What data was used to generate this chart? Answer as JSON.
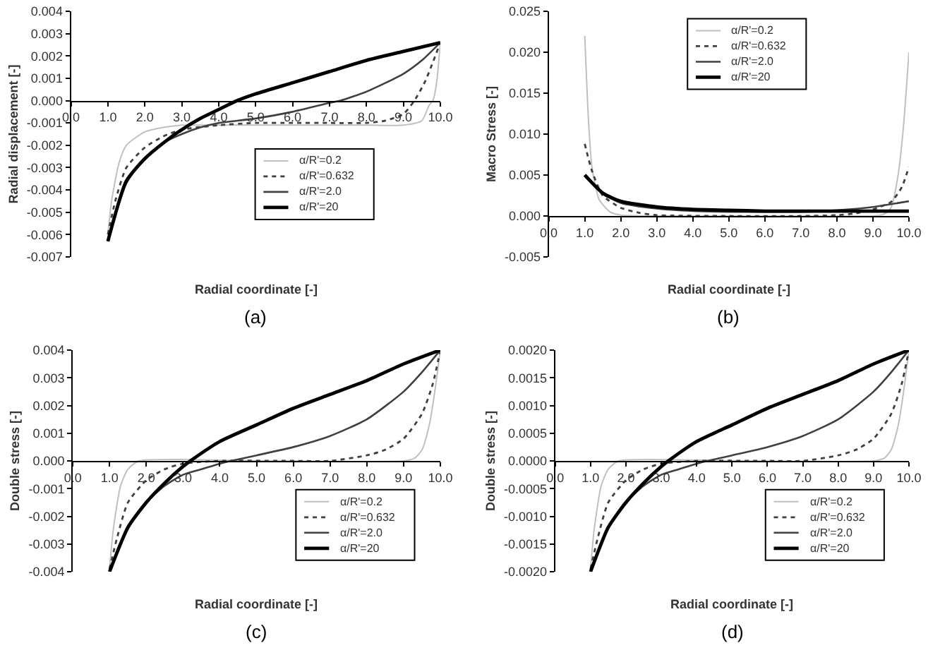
{
  "chart_data": [
    {
      "type": "line",
      "xlabel": "Radial coordinate [-]",
      "ylabel": "Radial displacement [-]",
      "annotations": [
        "(a)"
      ],
      "legend": "right",
      "grid": false,
      "xlim": [
        0,
        10
      ],
      "xticks": [
        {
          "value": 0,
          "label": "0.0"
        },
        {
          "value": 1,
          "label": "1.0"
        },
        {
          "value": 2,
          "label": "2.0"
        },
        {
          "value": 3,
          "label": "3.0"
        },
        {
          "value": 4,
          "label": "4.0"
        },
        {
          "value": 5,
          "label": "5.0"
        },
        {
          "value": 6,
          "label": "6.0"
        },
        {
          "value": 7,
          "label": "7.0"
        },
        {
          "value": 8,
          "label": "8.0"
        },
        {
          "value": 9,
          "label": "9.0"
        },
        {
          "value": 10,
          "label": "10.0"
        }
      ],
      "ylim": [
        -0.007,
        0.004
      ],
      "yticks": [
        {
          "value": -0.007,
          "label": "-0.007"
        },
        {
          "value": -0.006,
          "label": "-0.006"
        },
        {
          "value": -0.005,
          "label": "-0.005"
        },
        {
          "value": -0.004,
          "label": "-0.004"
        },
        {
          "value": -0.003,
          "label": "-0.003"
        },
        {
          "value": -0.002,
          "label": "-0.002"
        },
        {
          "value": -0.001,
          "label": "-0.001"
        },
        {
          "value": 0,
          "label": "0.000"
        },
        {
          "value": 0.001,
          "label": "0.001"
        },
        {
          "value": 0.002,
          "label": "0.002"
        },
        {
          "value": 0.003,
          "label": "0.003"
        },
        {
          "value": 0.004,
          "label": "0.004"
        }
      ],
      "series": [
        {
          "name": "α/R'=0.2",
          "color": "#c0c0c0",
          "line_style": "solid",
          "x": [
            1,
            1.1,
            1.3,
            1.5,
            2,
            2.5,
            3,
            4,
            6,
            8,
            9,
            9.5,
            9.7,
            9.8,
            9.9,
            10
          ],
          "values": [
            -0.006,
            -0.0045,
            -0.0028,
            -0.002,
            -0.0014,
            -0.0012,
            -0.0011,
            -0.0011,
            -0.0011,
            -0.0011,
            -0.0011,
            -0.0009,
            -0.0002,
            0.0,
            0.0008,
            0.0026
          ]
        },
        {
          "name": "α/R'=0.632",
          "color": "#404040",
          "line_style": "dotted",
          "x": [
            1,
            1.2,
            1.5,
            2,
            2.5,
            3,
            4,
            5,
            6,
            7,
            8,
            8.5,
            9,
            9.3,
            9.6,
            10
          ],
          "values": [
            -0.006,
            -0.0045,
            -0.003,
            -0.0021,
            -0.0016,
            -0.0013,
            -0.0011,
            -0.001,
            -0.001,
            -0.001,
            -0.001,
            -0.0009,
            -0.0006,
            0.0,
            0.0009,
            0.0026
          ]
        },
        {
          "name": "α/R'=2.0",
          "color": "#404040",
          "line_style": "solid",
          "x": [
            1,
            1.5,
            2,
            2.5,
            3,
            3.5,
            4,
            5,
            6,
            7,
            7.3,
            8,
            9,
            9.5,
            10
          ],
          "values": [
            -0.0063,
            -0.0037,
            -0.0026,
            -0.0019,
            -0.0015,
            -0.0012,
            -0.001,
            -0.0008,
            -0.0005,
            -0.0001,
            0.0,
            0.0004,
            0.0012,
            0.0018,
            0.0026
          ]
        },
        {
          "name": "α/R'=20",
          "color": "#000000",
          "line_style": "solid",
          "x": [
            1,
            1.5,
            2,
            2.5,
            3,
            3.5,
            4,
            4.5,
            5,
            6,
            7,
            8,
            9,
            10
          ],
          "values": [
            -0.0063,
            -0.0036,
            -0.0026,
            -0.0019,
            -0.0013,
            -0.0008,
            -0.0004,
            0.0,
            0.0003,
            0.0008,
            0.0013,
            0.0018,
            0.0022,
            0.0026
          ]
        }
      ]
    },
    {
      "type": "line",
      "xlabel": "Radial coordinate [-]",
      "ylabel": "Macro Stress [-]",
      "annotations": [
        "(b)"
      ],
      "legend": "top",
      "grid": false,
      "xlim": [
        0,
        10
      ],
      "xticks": [
        {
          "value": 0,
          "label": "0.0"
        },
        {
          "value": 1,
          "label": "1.0"
        },
        {
          "value": 2,
          "label": "2.0"
        },
        {
          "value": 3,
          "label": "3.0"
        },
        {
          "value": 4,
          "label": "4.0"
        },
        {
          "value": 5,
          "label": "5.0"
        },
        {
          "value": 6,
          "label": "6.0"
        },
        {
          "value": 7,
          "label": "7.0"
        },
        {
          "value": 8,
          "label": "8.0"
        },
        {
          "value": 9,
          "label": "9.0"
        },
        {
          "value": 10,
          "label": "10.0"
        }
      ],
      "ylim": [
        -0.005,
        0.025
      ],
      "yticks": [
        {
          "value": -0.005,
          "label": "-0.005"
        },
        {
          "value": 0,
          "label": "0.000"
        },
        {
          "value": 0.005,
          "label": "0.005"
        },
        {
          "value": 0.01,
          "label": "0.010"
        },
        {
          "value": 0.015,
          "label": "0.015"
        },
        {
          "value": 0.02,
          "label": "0.020"
        },
        {
          "value": 0.025,
          "label": "0.025"
        }
      ],
      "series": [
        {
          "name": "α/R'=0.2",
          "color": "#c0c0c0",
          "line_style": "solid",
          "x": [
            1,
            1.1,
            1.2,
            1.4,
            1.7,
            2,
            3,
            5,
            7,
            9,
            9.3,
            9.5,
            9.7,
            9.85,
            10
          ],
          "values": [
            0.022,
            0.012,
            0.006,
            0.002,
            0.0005,
            0.0001,
            0.0,
            0.0,
            0.0,
            0.0,
            0.0002,
            0.001,
            0.005,
            0.011,
            0.02
          ]
        },
        {
          "name": "α/R'=0.632",
          "color": "#404040",
          "line_style": "dotted",
          "x": [
            1,
            1.2,
            1.5,
            2,
            2.5,
            3,
            5,
            7,
            8,
            8.5,
            9,
            9.5,
            9.8,
            10
          ],
          "values": [
            0.0088,
            0.0055,
            0.0025,
            0.001,
            0.0004,
            0.0001,
            0.0,
            0.0,
            0.0001,
            0.0003,
            0.0008,
            0.0017,
            0.0035,
            0.006
          ]
        },
        {
          "name": "α/R'=2.0",
          "color": "#404040",
          "line_style": "solid",
          "x": [
            1,
            1.5,
            2,
            3,
            4,
            5,
            6,
            7,
            8,
            9,
            10
          ],
          "values": [
            0.005,
            0.0027,
            0.0016,
            0.0009,
            0.0006,
            0.0005,
            0.0005,
            0.0005,
            0.0007,
            0.0011,
            0.0018
          ]
        },
        {
          "name": "α/R'=20",
          "color": "#000000",
          "line_style": "solid",
          "x": [
            1,
            1.5,
            2,
            3,
            4,
            5,
            6,
            7,
            8,
            9,
            10
          ],
          "values": [
            0.005,
            0.0028,
            0.0018,
            0.0011,
            0.0008,
            0.0007,
            0.0006,
            0.0006,
            0.0006,
            0.0006,
            0.0006
          ]
        }
      ]
    },
    {
      "type": "line",
      "xlabel": "Radial coordinate [-]",
      "ylabel": "Double stress [-]",
      "annotations": [
        "(c)"
      ],
      "legend": "bottom right",
      "grid": false,
      "xlim": [
        0,
        10
      ],
      "xticks": [
        {
          "value": 0,
          "label": "0.0"
        },
        {
          "value": 1,
          "label": "1.0"
        },
        {
          "value": 2,
          "label": "2.0"
        },
        {
          "value": 3,
          "label": "3.0"
        },
        {
          "value": 4,
          "label": "4.0"
        },
        {
          "value": 5,
          "label": "5.0"
        },
        {
          "value": 6,
          "label": "6.0"
        },
        {
          "value": 7,
          "label": "7.0"
        },
        {
          "value": 8,
          "label": "8.0"
        },
        {
          "value": 9,
          "label": "9.0"
        },
        {
          "value": 10,
          "label": "10.0"
        }
      ],
      "ylim": [
        -0.004,
        0.004
      ],
      "yticks": [
        {
          "value": -0.004,
          "label": "-0.004"
        },
        {
          "value": -0.003,
          "label": "-0.003"
        },
        {
          "value": -0.002,
          "label": "-0.002"
        },
        {
          "value": -0.001,
          "label": "-0.001"
        },
        {
          "value": 0,
          "label": "0.000"
        },
        {
          "value": 0.001,
          "label": "0.001"
        },
        {
          "value": 0.002,
          "label": "0.002"
        },
        {
          "value": 0.003,
          "label": "0.003"
        },
        {
          "value": 0.004,
          "label": "0.004"
        }
      ],
      "series": [
        {
          "name": "α/R'=0.2",
          "color": "#c0c0c0",
          "line_style": "solid",
          "x": [
            1,
            1.1,
            1.3,
            1.5,
            1.8,
            5,
            9,
            9.3,
            9.5,
            9.7,
            9.85,
            10
          ],
          "values": [
            -0.0039,
            -0.0025,
            -0.0009,
            -0.0003,
            0.0,
            0.0,
            0.0,
            0.0001,
            0.0004,
            0.0013,
            0.0025,
            0.004
          ]
        },
        {
          "name": "α/R'=0.632",
          "color": "#404040",
          "line_style": "dotted",
          "x": [
            1,
            1.2,
            1.5,
            2,
            2.5,
            3,
            4,
            6,
            7,
            8,
            8.5,
            9,
            9.5,
            9.8,
            10
          ],
          "values": [
            -0.0039,
            -0.0028,
            -0.0015,
            -0.0007,
            -0.0003,
            -0.0001,
            0.0,
            0.0,
            0.0,
            0.0002,
            0.0004,
            0.0008,
            0.0017,
            0.0028,
            0.004
          ]
        },
        {
          "name": "α/R'=2.0",
          "color": "#404040",
          "line_style": "solid",
          "x": [
            1,
            1.5,
            2,
            2.5,
            3,
            3.5,
            4,
            4.3,
            5,
            6,
            7,
            8,
            9,
            9.5,
            10
          ],
          "values": [
            -0.004,
            -0.0024,
            -0.0015,
            -0.0009,
            -0.0005,
            -0.0003,
            -0.0001,
            0.0,
            0.0002,
            0.0005,
            0.0009,
            0.0015,
            0.0025,
            0.0032,
            0.004
          ]
        },
        {
          "name": "α/R'=20",
          "color": "#000000",
          "line_style": "solid",
          "x": [
            1,
            1.5,
            2,
            2.5,
            3,
            3.2,
            4,
            5,
            6,
            7,
            8,
            9,
            10
          ],
          "values": [
            -0.004,
            -0.0024,
            -0.0015,
            -0.0008,
            -0.0002,
            0.0,
            0.0007,
            0.0013,
            0.0019,
            0.0024,
            0.0029,
            0.0035,
            0.004
          ]
        }
      ]
    },
    {
      "type": "line",
      "xlabel": "Radial coordinate [-]",
      "ylabel": "Double stress [-]",
      "annotations": [
        "(d)"
      ],
      "legend": "bottom right",
      "grid": false,
      "xlim": [
        0,
        10
      ],
      "xticks": [
        {
          "value": 0,
          "label": "0.0"
        },
        {
          "value": 1,
          "label": "1.0"
        },
        {
          "value": 2,
          "label": "2.0"
        },
        {
          "value": 3,
          "label": "3.0"
        },
        {
          "value": 4,
          "label": "4.0"
        },
        {
          "value": 5,
          "label": "5.0"
        },
        {
          "value": 6,
          "label": "6.0"
        },
        {
          "value": 7,
          "label": "7.0"
        },
        {
          "value": 8,
          "label": "8.0"
        },
        {
          "value": 9,
          "label": "9.0"
        },
        {
          "value": 10,
          "label": "10.0"
        }
      ],
      "ylim": [
        -0.002,
        0.002
      ],
      "yticks": [
        {
          "value": -0.002,
          "label": "-0.0020"
        },
        {
          "value": -0.0015,
          "label": "-0.0015"
        },
        {
          "value": -0.001,
          "label": "-0.0010"
        },
        {
          "value": -0.0005,
          "label": "-0.0005"
        },
        {
          "value": 0,
          "label": "0.0000"
        },
        {
          "value": 0.0005,
          "label": "0.0005"
        },
        {
          "value": 0.001,
          "label": "0.0010"
        },
        {
          "value": 0.0015,
          "label": "0.0015"
        },
        {
          "value": 0.002,
          "label": "0.0020"
        }
      ],
      "series": [
        {
          "name": "α/R'=0.2",
          "color": "#c0c0c0",
          "line_style": "solid",
          "x": [
            1,
            1.1,
            1.3,
            1.5,
            1.8,
            5,
            9,
            9.3,
            9.5,
            9.7,
            9.85,
            10
          ],
          "values": [
            -0.00195,
            -0.00125,
            -0.00045,
            -0.00015,
            0.0,
            0.0,
            0.0,
            5e-05,
            0.0002,
            0.00065,
            0.00125,
            0.002
          ]
        },
        {
          "name": "α/R'=0.632",
          "color": "#404040",
          "line_style": "dotted",
          "x": [
            1,
            1.2,
            1.5,
            2,
            2.5,
            3,
            4,
            6,
            7,
            8,
            8.5,
            9,
            9.5,
            9.8,
            10
          ],
          "values": [
            -0.00195,
            -0.0014,
            -0.00075,
            -0.00035,
            -0.00015,
            -5e-05,
            0.0,
            0.0,
            0.0,
            0.0001,
            0.0002,
            0.0004,
            0.00085,
            0.0014,
            0.002
          ]
        },
        {
          "name": "α/R'=2.0",
          "color": "#404040",
          "line_style": "solid",
          "x": [
            1,
            1.5,
            2,
            2.5,
            3,
            3.5,
            4,
            4.3,
            5,
            6,
            7,
            8,
            9,
            9.5,
            10
          ],
          "values": [
            -0.002,
            -0.0012,
            -0.00075,
            -0.00045,
            -0.00025,
            -0.00015,
            -5e-05,
            0.0,
            0.0001,
            0.00025,
            0.00045,
            0.00075,
            0.00125,
            0.0016,
            0.002
          ]
        },
        {
          "name": "α/R'=20",
          "color": "#000000",
          "line_style": "solid",
          "x": [
            1,
            1.5,
            2,
            2.5,
            3,
            3.2,
            4,
            5,
            6,
            7,
            8,
            9,
            10
          ],
          "values": [
            -0.002,
            -0.0012,
            -0.00075,
            -0.0004,
            -0.0001,
            0.0,
            0.00035,
            0.00065,
            0.00095,
            0.0012,
            0.00145,
            0.00175,
            0.002
          ]
        }
      ]
    }
  ]
}
